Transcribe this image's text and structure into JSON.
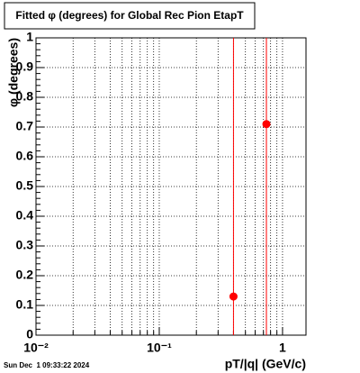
{
  "chart_data": {
    "type": "scatter",
    "title": "Fitted φ (degrees) for Global Rec Pion EtapT",
    "x_label": "pT/|q| (GeV/c)",
    "y_label": "φ (degrees)",
    "timestamp": "Sun Dec  1 09:33:22 2024",
    "x_log": true,
    "grid": true,
    "xlim": [
      0.01,
      1.55
    ],
    "ylim": [
      0,
      1
    ],
    "xticks": [
      {
        "value": 0.01,
        "label": "10⁻²"
      },
      {
        "value": 0.1,
        "label": "10⁻¹"
      },
      1
    ],
    "yticks": [
      0,
      0.1,
      0.2,
      0.3,
      0.4,
      0.5,
      0.6,
      0.7,
      0.8,
      0.9,
      1
    ],
    "series": [
      {
        "color": "#ff0000",
        "x": [
          0.4,
          0.74
        ],
        "values": [
          0.13,
          0.71
        ]
      }
    ]
  }
}
